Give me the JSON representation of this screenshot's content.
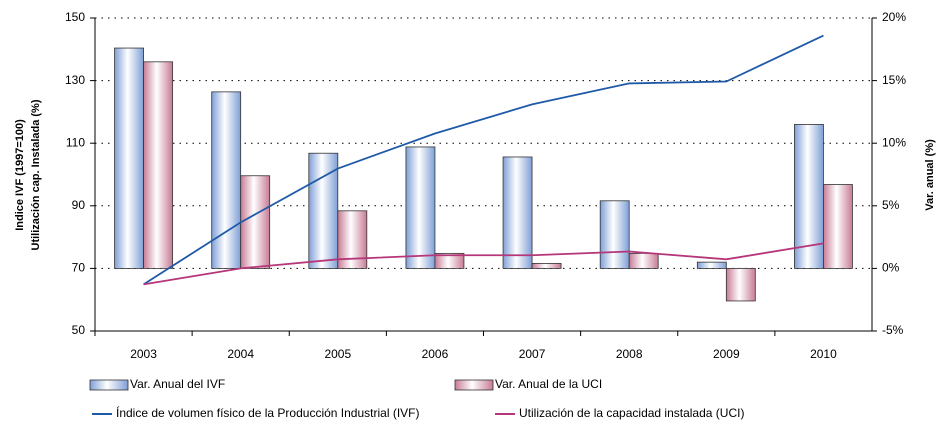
{
  "chart_data": {
    "type": "bar_line",
    "ylabel": [
      "Indice IVF (1997=100)",
      "Utilización cap. Instalada (%)"
    ],
    "y2label": "Var. anual (%)",
    "categories": [
      "2003",
      "2004",
      "2005",
      "2006",
      "2007",
      "2008",
      "2009",
      "2010"
    ],
    "series": [
      {
        "name": "Var. Anual del IVF",
        "type": "bar",
        "axis": "y2",
        "color": "#7f9fd6",
        "values": [
          17.6,
          14.1,
          9.2,
          9.7,
          8.9,
          5.4,
          0.5,
          11.5
        ]
      },
      {
        "name": "Var. Anual de la UCI",
        "type": "bar",
        "axis": "y2",
        "color": "#c77b95",
        "values": [
          16.5,
          7.4,
          4.6,
          1.2,
          0.4,
          1.2,
          -2.6,
          6.7
        ]
      },
      {
        "name": "Índice de volumen físico de la Producción Industrial (IVF)",
        "type": "line",
        "axis": "y",
        "color": "#1f5aa8",
        "values": [
          64.9,
          84.7,
          101.9,
          113.1,
          122.4,
          129.1,
          129.7,
          144.4
        ]
      },
      {
        "name": "Utilización de la capacidad instalada (UCI)",
        "type": "line",
        "axis": "y",
        "color": "#b5377a",
        "values": [
          64.9,
          70,
          72.9,
          74.2,
          74.2,
          75.4,
          72.9,
          78
        ]
      }
    ],
    "ylim": [
      50,
      150
    ],
    "yticks": [
      50,
      70,
      90,
      110,
      130,
      150
    ],
    "y2lim": [
      -5,
      20
    ],
    "y2ticks": [
      {
        "value": -5,
        "label": "-5%"
      },
      {
        "value": 0,
        "label": "0%"
      },
      {
        "value": 5,
        "label": "5%"
      },
      {
        "value": 10,
        "label": "10%"
      },
      {
        "value": 15,
        "label": "15%"
      },
      {
        "value": 20,
        "label": "20%"
      }
    ],
    "grid": true
  }
}
